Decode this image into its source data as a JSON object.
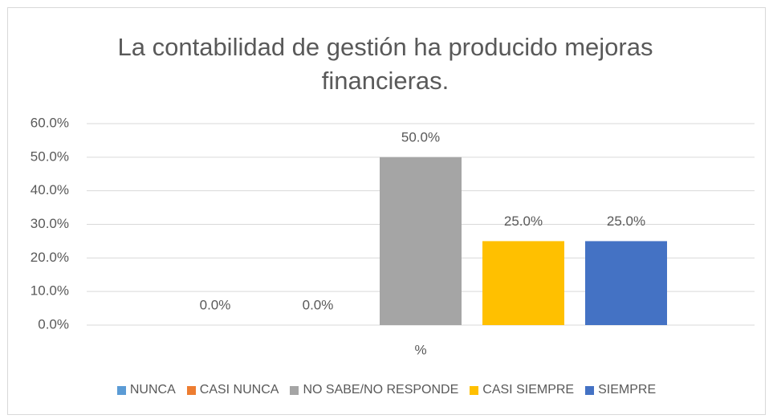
{
  "chart_data": {
    "type": "bar",
    "title": "La contabilidad de gestión ha producido mejoras financieras.",
    "categories": [
      "%"
    ],
    "series": [
      {
        "name": "NUNCA",
        "color": "#5b9bd5",
        "values": [
          0
        ],
        "value_labels": [
          "0.0%"
        ]
      },
      {
        "name": "CASI NUNCA",
        "color": "#ed7d31",
        "values": [
          0
        ],
        "value_labels": [
          "0.0%"
        ]
      },
      {
        "name": "NO SABE/NO RESPONDE",
        "color": "#a5a5a5",
        "values": [
          50
        ],
        "value_labels": [
          "50.0%"
        ]
      },
      {
        "name": "CASI SIEMPRE",
        "color": "#ffc000",
        "values": [
          25
        ],
        "value_labels": [
          "25.0%"
        ]
      },
      {
        "name": "SIEMPRE",
        "color": "#4472c4",
        "values": [
          25
        ],
        "value_labels": [
          "25.0%"
        ]
      }
    ],
    "ylim": [
      0,
      60
    ],
    "yticks": [
      {
        "value": 0,
        "label": "0.0%"
      },
      {
        "value": 10,
        "label": "10.0%"
      },
      {
        "value": 20,
        "label": "20.0%"
      },
      {
        "value": 30,
        "label": "30.0%"
      },
      {
        "value": 40,
        "label": "40.0%"
      },
      {
        "value": 50,
        "label": "50.0%"
      },
      {
        "value": 60,
        "label": "60.0%"
      }
    ],
    "grid": true,
    "legend": "bottom"
  }
}
